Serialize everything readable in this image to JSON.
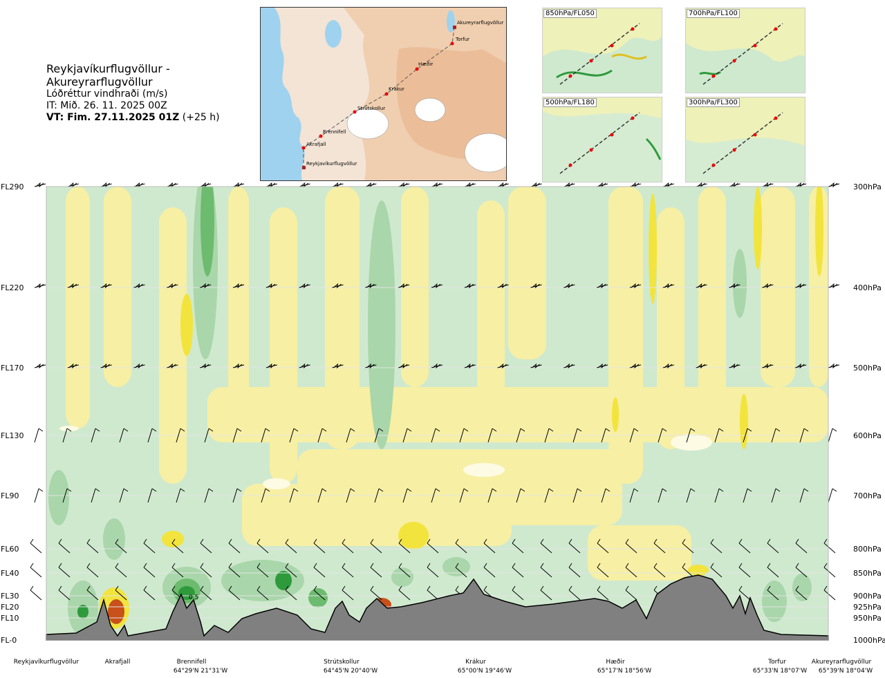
{
  "header": {
    "title": "Reykjavíkurflugvöllur - Akureyrarflugvöllur",
    "subtitle": "Lóðréttur vindhraði (m/s)",
    "issue_time": "IT: Mið. 26. 11. 2025 00Z",
    "valid_label": "VT: Fim. 27.11.2025 01Z",
    "valid_offset": "(+25 h)"
  },
  "map": {
    "points": [
      "Akureyrarflugvöllur",
      "Torfur",
      "Hæðir",
      "Krákur",
      "Strútskollur",
      "Brennifell",
      "Akrafjall",
      "Reykjavíkurflugvöllur"
    ]
  },
  "insets": [
    {
      "label": "850hPa/FL050"
    },
    {
      "label": "700hPa/FL100"
    },
    {
      "label": "500hPa/FL180"
    },
    {
      "label": "300hPa/FL300"
    }
  ],
  "chart_data": {
    "type": "heatmap",
    "title": "Lóðréttur vindhraði (m/s)",
    "y_left_ticks": [
      {
        "label": "FL290",
        "hpa": 300
      },
      {
        "label": "FL220",
        "hpa": 400
      },
      {
        "label": "FL170",
        "hpa": 500
      },
      {
        "label": "FL130",
        "hpa": 600
      },
      {
        "label": "FL90",
        "hpa": 700
      },
      {
        "label": "FL60",
        "hpa": 800
      },
      {
        "label": "FL40",
        "hpa": 850
      },
      {
        "label": "FL30",
        "hpa": 900
      },
      {
        "label": "FL20",
        "hpa": 925
      },
      {
        "label": "FL10",
        "hpa": 950
      },
      {
        "label": "FL-0",
        "hpa": 1000
      }
    ],
    "y_right_ticks": [
      "300hPa",
      "400hPa",
      "500hPa",
      "600hPa",
      "700hPa",
      "800hPa",
      "850hPa",
      "900hPa",
      "925hPa",
      "950hPa",
      "1000hPa"
    ],
    "x_locations": [
      {
        "name": "Reykjavíkurflugvöllur",
        "coord": "",
        "frac": 0.0
      },
      {
        "name": "Akrafjall",
        "coord": "",
        "frac": 0.09
      },
      {
        "name": "Brennifell",
        "coord": "64°29'N 21°31'W",
        "frac": 0.185
      },
      {
        "name": "Strútskollur",
        "coord": "64°45'N 20°40'W",
        "frac": 0.385
      },
      {
        "name": "Krákur",
        "coord": "65°00'N 19°46'W",
        "frac": 0.57
      },
      {
        "name": "Hæðir",
        "coord": "65°17'N 18°56'W",
        "frac": 0.745
      },
      {
        "name": "Torfur",
        "coord": "65°33'N 18°07'W",
        "frac": 0.945
      },
      {
        "name": "Akureyrarflugvöllur",
        "coord": "65°39'N 18°04'W",
        "frac": 0.985
      }
    ],
    "contour_label": "0.5",
    "colors": {
      "strong_down": "#f2e43c",
      "down": "#f7efa3",
      "weak": "#fdfbe3",
      "up": "#cfe9cf",
      "mid_up": "#a9d6aa",
      "strong_up": "#6dbb6e",
      "max_up": "#2e9a3c",
      "hot": "#c8501a",
      "terrain": "#808080"
    }
  }
}
